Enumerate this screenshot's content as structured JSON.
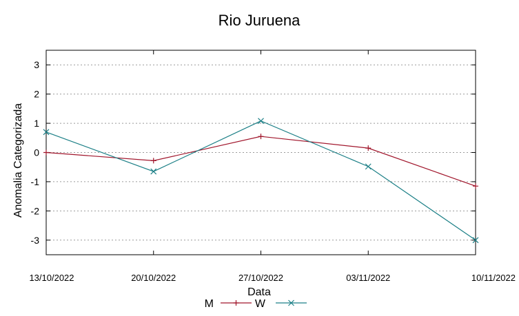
{
  "chart_data": {
    "type": "line",
    "title": "Rio Juruena",
    "xlabel": "Data",
    "ylabel": "Anomalia Categorizada",
    "categories": [
      "13/10/2022",
      "20/10/2022",
      "27/10/2022",
      "03/11/2022",
      "10/11/2022"
    ],
    "ylim": [
      -3.5,
      3.5
    ],
    "yticks": [
      -3,
      -2,
      -1,
      0,
      1,
      2,
      3
    ],
    "grid": true,
    "legend_position": "bottom",
    "series": [
      {
        "name": "M",
        "values": [
          0.0,
          -0.28,
          0.55,
          0.15,
          -1.15
        ],
        "color": "#a0142a",
        "marker": "plus"
      },
      {
        "name": "W",
        "values": [
          0.7,
          -0.65,
          1.08,
          -0.48,
          -3.0
        ],
        "color": "#1b7f86",
        "marker": "cross"
      }
    ]
  }
}
